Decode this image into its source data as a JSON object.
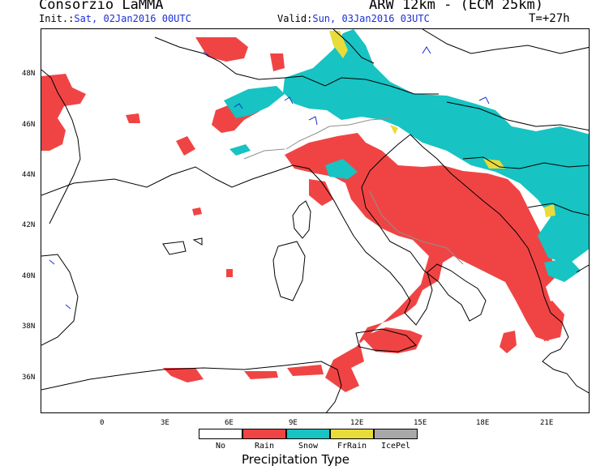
{
  "header": {
    "title_left": "Consorzio LaMMA",
    "init_label": "Init.:",
    "init_value": "Sat, 02Jan2016 00UTC",
    "valid_label": "Valid:",
    "valid_value": "Sun, 03Jan2016 03UTC",
    "title_right": "ARW 12km - (ECM 25km)",
    "forecast_step": "T=+27h"
  },
  "axes": {
    "lat_labels": [
      "48N",
      "46N",
      "44N",
      "42N",
      "40N",
      "38N",
      "36N"
    ],
    "lon_labels": [
      "0",
      "3E",
      "6E",
      "9E",
      "12E",
      "15E",
      "18E",
      "21E"
    ]
  },
  "legend": {
    "title": "Precipitation Type",
    "items": [
      {
        "label": "No",
        "color": "#ffffff"
      },
      {
        "label": "Rain",
        "color": "#f04444"
      },
      {
        "label": "Snow",
        "color": "#17c3c3"
      },
      {
        "label": "FrRain",
        "color": "#e8dc3a"
      },
      {
        "label": "IcePel",
        "color": "#a8a8a8"
      }
    ]
  },
  "colors": {
    "rain": "#f04444",
    "snow": "#17c3c3",
    "freezing_rain": "#e8dc3a",
    "coastline": "#000000",
    "border": "#909090",
    "lakes_rivers": "#1a2fd6"
  }
}
